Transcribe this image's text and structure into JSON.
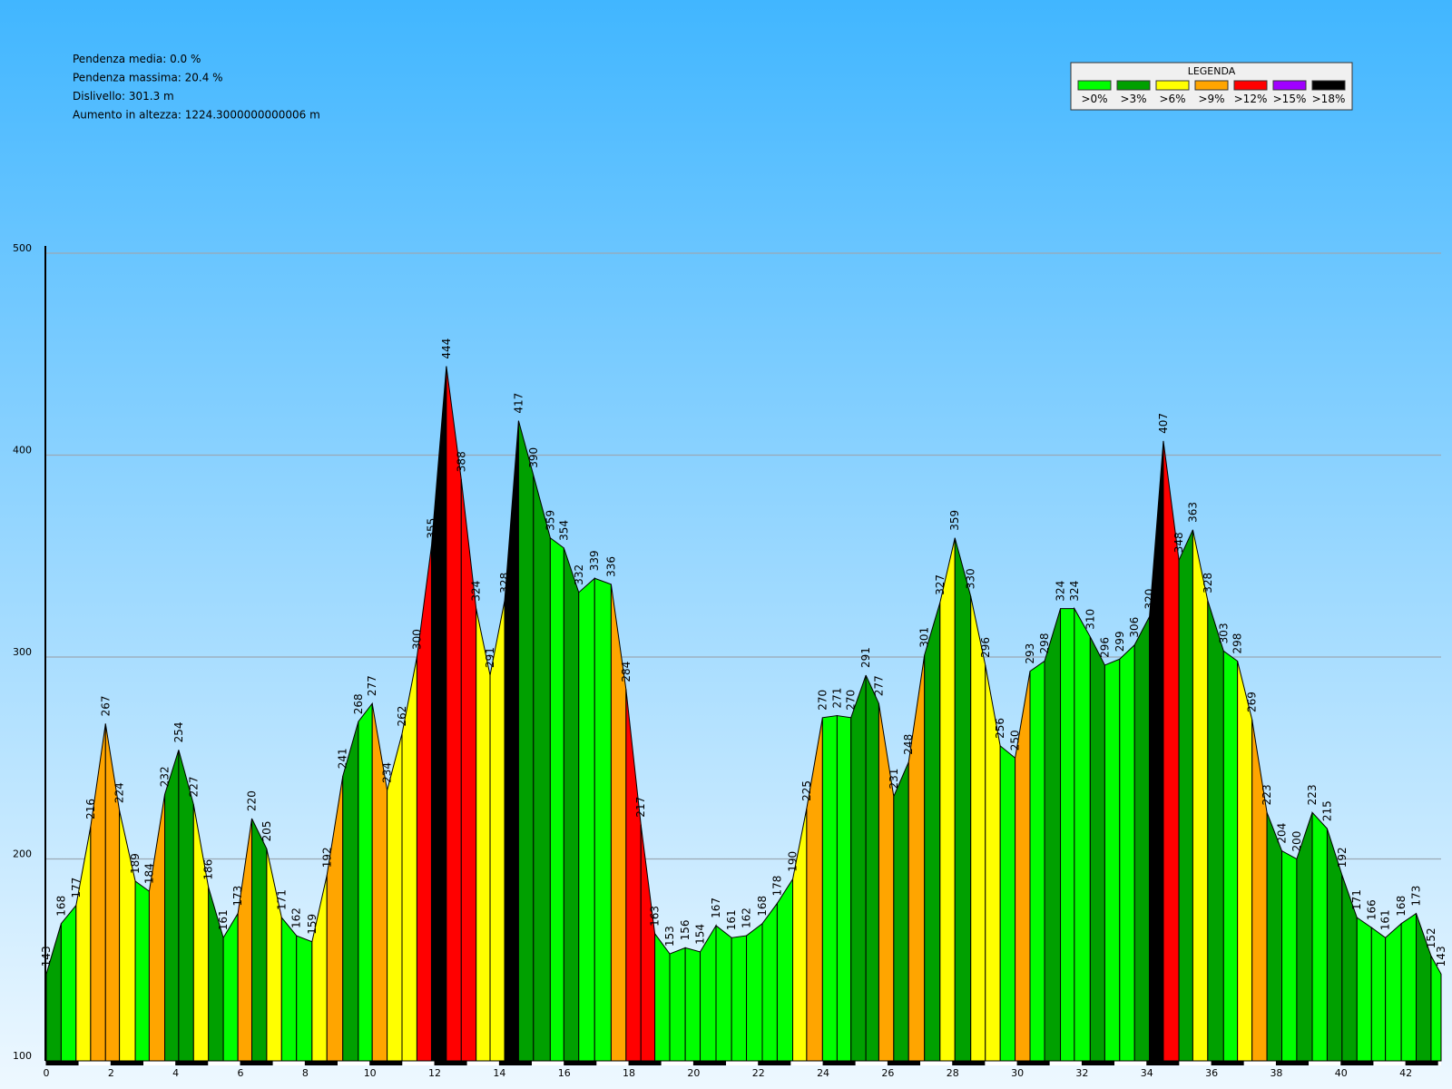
{
  "chart_data": {
    "type": "elevation-profile",
    "stats": [
      "Pendenza media: 0.0 %",
      "Pendenza massima: 20.4 %",
      "Dislivello: 301.3 m",
      "Aumento in altezza: 1224.3000000000006 m"
    ],
    "legend": {
      "title": "LEGENDA",
      "items": [
        {
          "value": 0,
          "label": ">0%",
          "color": "#00ff00"
        },
        {
          "value": 3,
          "label": ">3%",
          "color": "#00a000"
        },
        {
          "value": 6,
          "label": ">6%",
          "color": "#ffff00"
        },
        {
          "value": 9,
          "label": ">9%",
          "color": "#ffa500"
        },
        {
          "value": 12,
          "label": ">12%",
          "color": "#ff0000"
        },
        {
          "value": 15,
          "label": ">15%",
          "color": "#a000ff"
        },
        {
          "value": 18,
          "label": ">18%",
          "color": "#000000"
        }
      ]
    },
    "x": [
      0,
      0.46,
      0.92,
      1.37,
      1.83,
      2.26,
      2.75,
      3.18,
      3.66,
      4.09,
      4.55,
      5.01,
      5.47,
      5.92,
      6.35,
      6.81,
      7.27,
      7.73,
      8.21,
      8.67,
      9.16,
      9.64,
      10.07,
      10.53,
      10.99,
      11.45,
      11.9,
      12.36,
      12.82,
      13.28,
      13.71,
      14.16,
      14.59,
      15.05,
      15.57,
      15.99,
      16.45,
      16.94,
      17.45,
      17.91,
      18.37,
      18.8,
      19.26,
      19.74,
      20.2,
      20.69,
      21.17,
      21.63,
      22.12,
      22.58,
      23.06,
      23.49,
      23.98,
      24.43,
      24.86,
      25.32,
      25.72,
      26.18,
      26.64,
      27.13,
      27.61,
      28.07,
      28.56,
      29.01,
      29.47,
      29.93,
      30.39,
      30.84,
      31.33,
      31.76,
      32.25,
      32.7,
      33.16,
      33.62,
      34.08,
      34.51,
      34.99,
      35.42,
      35.88,
      36.37,
      36.8,
      37.25,
      37.71,
      38.17,
      38.63,
      39.11,
      39.57,
      40.03,
      40.49,
      40.94,
      41.37,
      41.86,
      42.32,
      42.78,
      43.09
    ],
    "values": [
      143,
      168,
      177,
      216,
      267,
      224,
      189,
      184,
      232,
      254,
      227,
      186,
      161,
      173,
      220,
      205,
      171,
      162,
      159,
      192,
      241,
      268,
      277,
      234,
      262,
      300,
      355,
      444,
      388,
      324,
      291,
      328,
      417,
      390,
      359,
      354,
      332,
      339,
      336,
      284,
      217,
      163,
      153,
      156,
      154,
      167,
      161,
      162,
      168,
      178,
      190,
      225,
      270,
      271,
      270,
      291,
      277,
      231,
      248,
      301,
      327,
      359,
      330,
      296,
      256,
      250,
      293,
      298,
      324,
      324,
      310,
      296,
      299,
      306,
      320,
      407,
      348,
      363,
      328,
      303,
      298,
      269,
      223,
      204,
      200,
      223,
      215,
      192,
      171,
      166,
      161,
      168,
      173,
      152,
      143
    ],
    "xlim": [
      0,
      43.09
    ],
    "xticks": [
      0,
      2,
      4,
      6,
      8,
      10,
      12,
      14,
      16,
      18,
      20,
      22,
      24,
      26,
      28,
      30,
      32,
      34,
      36,
      38,
      40,
      42
    ],
    "ylim": [
      100,
      500
    ],
    "yticks": [
      100,
      200,
      300,
      400,
      500
    ],
    "grid": true
  }
}
